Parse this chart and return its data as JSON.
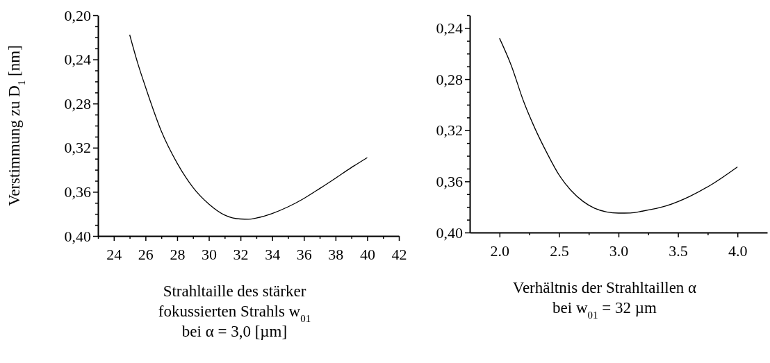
{
  "chart_data": [
    {
      "type": "line",
      "xlabel": "Strahltaille des stärker\nfokussierten Strahls w$_{01}$\nbei α = 3,0  [µm]",
      "ylabel": "Verstimmung zu D$_{1}$  [nm]",
      "x": [
        25,
        25.5,
        26,
        27,
        28,
        29,
        30,
        31,
        32,
        32.5,
        33,
        34,
        35,
        36,
        37,
        38,
        39,
        40
      ],
      "series": [
        {
          "color": "#000000",
          "values": [
            0.2176,
            0.243,
            0.265,
            0.305,
            0.334,
            0.356,
            0.371,
            0.381,
            0.3846,
            0.3848,
            0.3837,
            0.3796,
            0.3736,
            0.366,
            0.357,
            0.3476,
            0.338,
            0.329
          ]
        }
      ],
      "xlim": [
        23,
        42
      ],
      "ylim": [
        0.4,
        0.2
      ],
      "xticks": [
        {
          "value": 23,
          "label": null
        },
        24,
        {
          "value": 25,
          "label": null
        },
        26,
        {
          "value": 27,
          "label": null
        },
        28,
        {
          "value": 29,
          "label": null
        },
        30,
        {
          "value": 31,
          "label": null
        },
        32,
        {
          "value": 33,
          "label": null
        },
        34,
        {
          "value": 35,
          "label": null
        },
        36,
        {
          "value": 37,
          "label": null
        },
        38,
        {
          "value": 39,
          "label": null
        },
        40,
        {
          "value": 41,
          "label": null
        },
        42
      ],
      "yticks": [
        {
          "value": 0.2,
          "label": "0,20"
        },
        {
          "value": 0.21,
          "label": null
        },
        {
          "value": 0.22,
          "label": null
        },
        {
          "value": 0.23,
          "label": null
        },
        {
          "value": 0.24,
          "label": "0,24"
        },
        {
          "value": 0.25,
          "label": null
        },
        {
          "value": 0.26,
          "label": null
        },
        {
          "value": 0.27,
          "label": null
        },
        {
          "value": 0.28,
          "label": "0,28"
        },
        {
          "value": 0.29,
          "label": null
        },
        {
          "value": 0.3,
          "label": null
        },
        {
          "value": 0.31,
          "label": null
        },
        {
          "value": 0.32,
          "label": "0,32"
        },
        {
          "value": 0.33,
          "label": null
        },
        {
          "value": 0.34,
          "label": null
        },
        {
          "value": 0.35,
          "label": null
        },
        {
          "value": 0.36,
          "label": "0,36"
        },
        {
          "value": 0.37,
          "label": null
        },
        {
          "value": 0.38,
          "label": null
        },
        {
          "value": 0.39,
          "label": null
        },
        {
          "value": 0.4,
          "label": "0,40"
        }
      ],
      "line_style": "solid"
    },
    {
      "type": "line",
      "xlabel": "Verhältnis der Strahltaillen α\nbei w$_{01}$ = 32 µm",
      "x": [
        2.0,
        2.1,
        2.2,
        2.3,
        2.4,
        2.5,
        2.6,
        2.7,
        2.8,
        2.9,
        3.0,
        3.1,
        3.2,
        3.4,
        3.6,
        3.8,
        4.0
      ],
      "series": [
        {
          "color": "#000000",
          "values": [
            0.248,
            0.2696,
            0.2968,
            0.319,
            0.338,
            0.3549,
            0.367,
            0.3755,
            0.3811,
            0.3839,
            0.3848,
            0.3847,
            0.3833,
            0.3792,
            0.3717,
            0.3614,
            0.3487
          ]
        }
      ],
      "xlim": [
        1.75,
        4.25
      ],
      "ylim": [
        0.4,
        0.23
      ],
      "xticks": [
        {
          "value": 2.0,
          "label": "2.0"
        },
        {
          "value": 2.25,
          "label": null
        },
        {
          "value": 2.5,
          "label": "2.5"
        },
        {
          "value": 2.75,
          "label": null
        },
        {
          "value": 3.0,
          "label": "3.0"
        },
        {
          "value": 3.25,
          "label": null
        },
        {
          "value": 3.5,
          "label": "3.5"
        },
        {
          "value": 3.75,
          "label": null
        },
        {
          "value": 4.0,
          "label": "4.0"
        }
      ],
      "yticks": [
        {
          "value": 0.23,
          "label": null
        },
        {
          "value": 0.24,
          "label": "0,24"
        },
        {
          "value": 0.25,
          "label": null
        },
        {
          "value": 0.26,
          "label": null
        },
        {
          "value": 0.27,
          "label": null
        },
        {
          "value": 0.28,
          "label": "0,28"
        },
        {
          "value": 0.29,
          "label": null
        },
        {
          "value": 0.3,
          "label": null
        },
        {
          "value": 0.31,
          "label": null
        },
        {
          "value": 0.32,
          "label": "0,32"
        },
        {
          "value": 0.33,
          "label": null
        },
        {
          "value": 0.34,
          "label": null
        },
        {
          "value": 0.35,
          "label": null
        },
        {
          "value": 0.36,
          "label": "0,36"
        },
        {
          "value": 0.37,
          "label": null
        },
        {
          "value": 0.38,
          "label": null
        },
        {
          "value": 0.39,
          "label": null
        },
        {
          "value": 0.4,
          "label": "0,40"
        }
      ],
      "line_style": "solid"
    }
  ]
}
